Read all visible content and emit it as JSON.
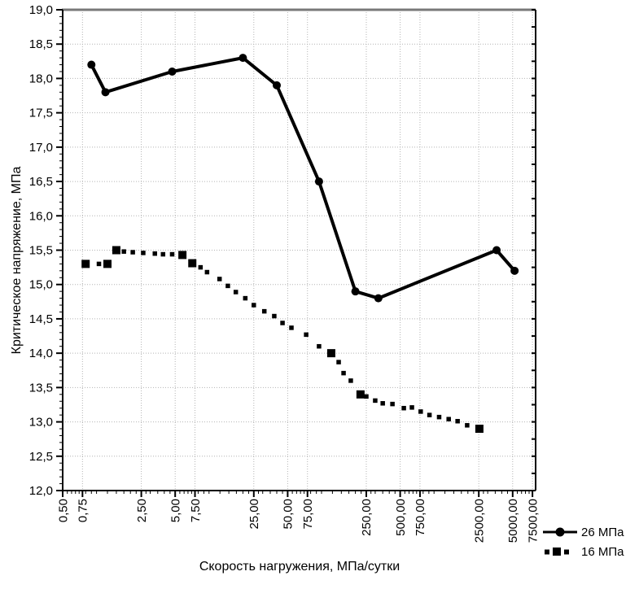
{
  "chart_data": {
    "type": "line",
    "title": "",
    "xlabel": "Скорость нагружения, МПа/сутки",
    "ylabel": "Критическое напряжение, МПа",
    "x_scale": "log",
    "grid": true,
    "legend_position": "bottom-right",
    "xlim": [
      0.5,
      8000
    ],
    "ylim": [
      12.0,
      19.0
    ],
    "x_ticks": {
      "values": [
        0.5,
        0.75,
        2.5,
        5,
        7.5,
        25,
        50,
        75,
        250,
        500,
        750,
        2500,
        5000,
        7500
      ],
      "labels": [
        "0,50",
        "0,75",
        "2,50",
        "5,00",
        "7,50",
        "25,00",
        "50,00",
        "75,00",
        "250,00",
        "500,00",
        "750,00",
        "2500,00",
        "5000,00",
        "7500,00"
      ]
    },
    "y_ticks": {
      "values": [
        12.0,
        12.5,
        13.0,
        13.5,
        14.0,
        14.5,
        15.0,
        15.5,
        16.0,
        16.5,
        17.0,
        17.5,
        18.0,
        18.5,
        19.0
      ],
      "labels": [
        "12,0",
        "12,5",
        "13,0",
        "13,5",
        "14,0",
        "14,5",
        "15,0",
        "15,5",
        "16,0",
        "16,5",
        "17,0",
        "17,5",
        "18,0",
        "18,5",
        "19,0"
      ]
    },
    "series": [
      {
        "name": "26 МПа",
        "marker": "circle",
        "line": "solid",
        "color": "#000000",
        "points": [
          [
            0.9,
            18.2
          ],
          [
            1.2,
            17.8
          ],
          [
            4.7,
            18.1
          ],
          [
            20,
            18.3
          ],
          [
            40,
            17.9
          ],
          [
            95,
            16.5
          ],
          [
            200,
            14.9
          ],
          [
            320,
            14.8
          ],
          [
            3600,
            15.5
          ],
          [
            5200,
            15.2
          ]
        ]
      },
      {
        "name": "16 МПа",
        "marker": "square",
        "line": "square-dash",
        "color": "#000000",
        "points": [
          [
            0.8,
            15.3
          ],
          [
            1.05,
            15.3
          ],
          [
            1.25,
            15.3
          ],
          [
            1.5,
            15.5
          ],
          [
            1.75,
            15.48
          ],
          [
            2.1,
            15.47
          ],
          [
            2.6,
            15.46
          ],
          [
            3.3,
            15.45
          ],
          [
            3.9,
            15.44
          ],
          [
            4.7,
            15.44
          ],
          [
            5.8,
            15.43
          ],
          [
            7.1,
            15.31
          ],
          [
            8.4,
            15.25
          ],
          [
            9.6,
            15.18
          ],
          [
            12.4,
            15.08
          ],
          [
            14.7,
            14.98
          ],
          [
            17.3,
            14.89
          ],
          [
            21,
            14.8
          ],
          [
            25,
            14.7
          ],
          [
            31,
            14.61
          ],
          [
            38,
            14.54
          ],
          [
            45,
            14.44
          ],
          [
            54,
            14.37
          ],
          [
            73,
            14.27
          ],
          [
            95,
            14.1
          ],
          [
            122,
            14.0
          ],
          [
            142,
            13.87
          ],
          [
            157,
            13.71
          ],
          [
            182,
            13.6
          ],
          [
            222,
            13.4
          ],
          [
            250,
            13.37
          ],
          [
            300,
            13.31
          ],
          [
            350,
            13.27
          ],
          [
            427,
            13.26
          ],
          [
            539,
            13.2
          ],
          [
            636,
            13.21
          ],
          [
            761,
            13.15
          ],
          [
            911,
            13.1
          ],
          [
            1110,
            13.07
          ],
          [
            1350,
            13.04
          ],
          [
            1620,
            13.01
          ],
          [
            1970,
            12.95
          ],
          [
            2530,
            12.9
          ]
        ],
        "major_points": [
          [
            0.8,
            15.3
          ],
          [
            1.25,
            15.3
          ],
          [
            1.5,
            15.5
          ],
          [
            5.8,
            15.43
          ],
          [
            7.1,
            15.31
          ],
          [
            122,
            14.0
          ],
          [
            222,
            13.4
          ],
          [
            2530,
            12.9
          ]
        ]
      }
    ]
  }
}
